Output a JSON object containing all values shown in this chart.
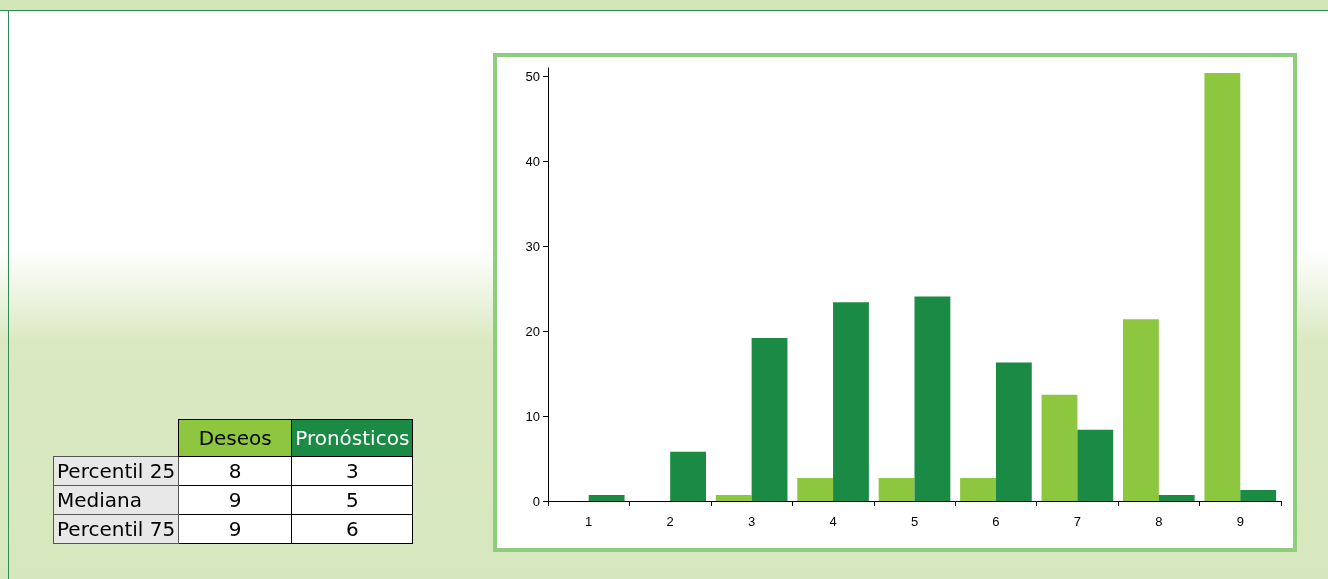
{
  "chart_data": [
    {
      "type": "other",
      "categories": [
        "Percentil 25",
        "Mediana",
        "Percentil 75"
      ],
      "data_labels": true,
      "series": [
        {
          "name": "Deseos",
          "values": [
            8,
            9,
            9
          ]
        },
        {
          "name": "Pronósticos",
          "values": [
            3,
            5,
            6
          ]
        }
      ]
    },
    {
      "type": "bar",
      "categories": [
        "1",
        "2",
        "3",
        "4",
        "5",
        "6",
        "7",
        "8",
        "9"
      ],
      "ylim": [
        0,
        51
      ],
      "yticks": [
        0,
        10,
        20,
        30,
        40,
        50
      ],
      "grid": false,
      "series": [
        {
          "color": "#8dc63f",
          "values": [
            0,
            0,
            0.7,
            2.7,
            2.7,
            2.7,
            12.5,
            21.4,
            50.4
          ]
        },
        {
          "color": "#1a8a45",
          "values": [
            0.7,
            5.8,
            19.2,
            23.4,
            24.1,
            16.3,
            8.4,
            0.7,
            1.3
          ]
        }
      ]
    }
  ]
}
